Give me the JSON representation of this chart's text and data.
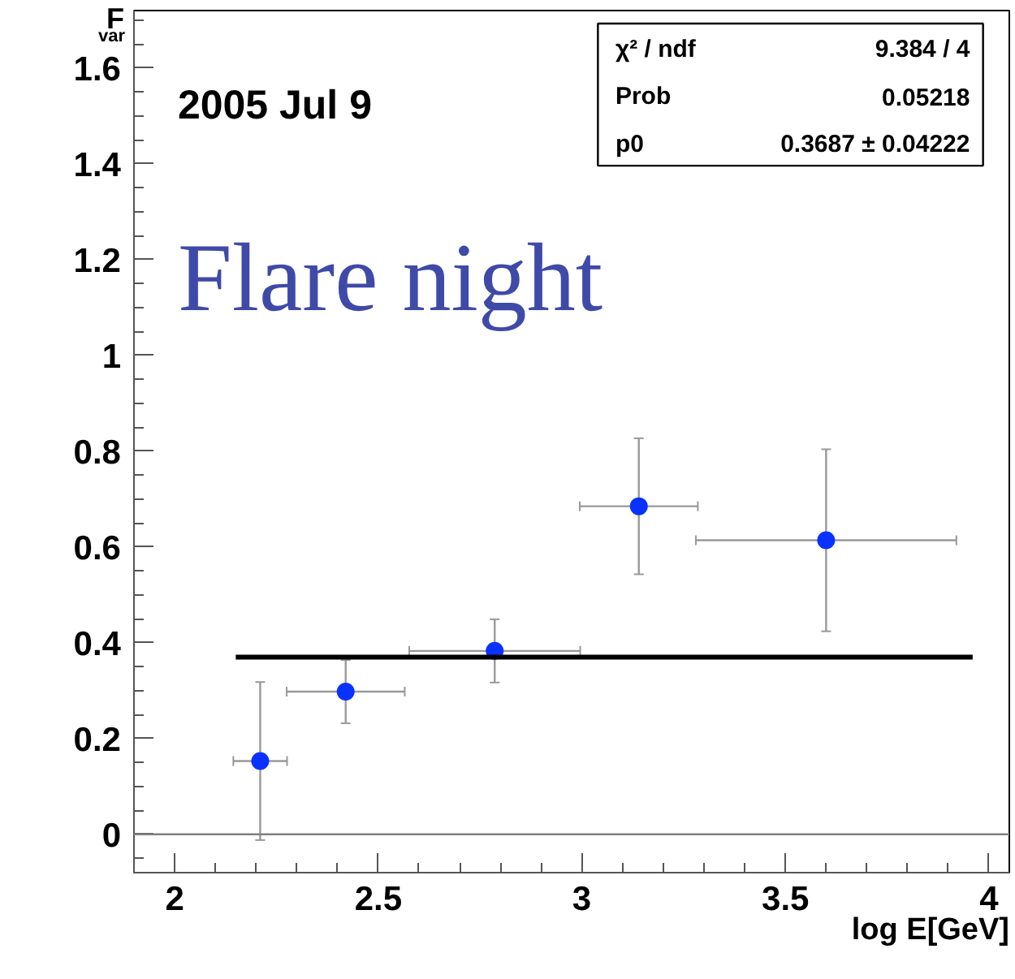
{
  "chart_data": {
    "type": "scatter",
    "ylabel": "F$_{var}$",
    "xlabel": "log E[GeV]",
    "annotations": [
      "2005 Jul 9",
      "Flare night",
      "χ² / ndf",
      "9.384 / 4",
      "Prob",
      "0.05218",
      "p0",
      "0.3687 ± 0.04222"
    ],
    "series": [
      {
        "color": "#0a32ff",
        "x": [
          2.21,
          2.42,
          2.786,
          3.14,
          3.6
        ],
        "values": [
          0.153,
          0.298,
          0.383,
          0.685,
          0.614
        ],
        "errors": [
          0.165,
          0.066,
          0.066,
          0.142,
          0.19
        ],
        "xerrors": [
          0.066,
          0.145,
          0.21,
          0.145,
          0.32
        ],
        "marker": "circle"
      },
      {
        "type": "line",
        "color": "#000000",
        "x": [
          2.15,
          3.96
        ],
        "values": [
          0.37,
          0.37
        ]
      }
    ],
    "ref_lines": [
      {
        "axis": "y",
        "value": 0,
        "color": "#808080"
      }
    ],
    "xlim": [
      1.9,
      4.05
    ],
    "ylim": [
      -0.08,
      1.72
    ],
    "xticks": [
      2,
      2.5,
      3,
      3.5,
      4
    ],
    "yticks": [
      0,
      0.2,
      0.4,
      0.6,
      0.8,
      1,
      1.2,
      1.4,
      1.6
    ],
    "grid": false
  }
}
